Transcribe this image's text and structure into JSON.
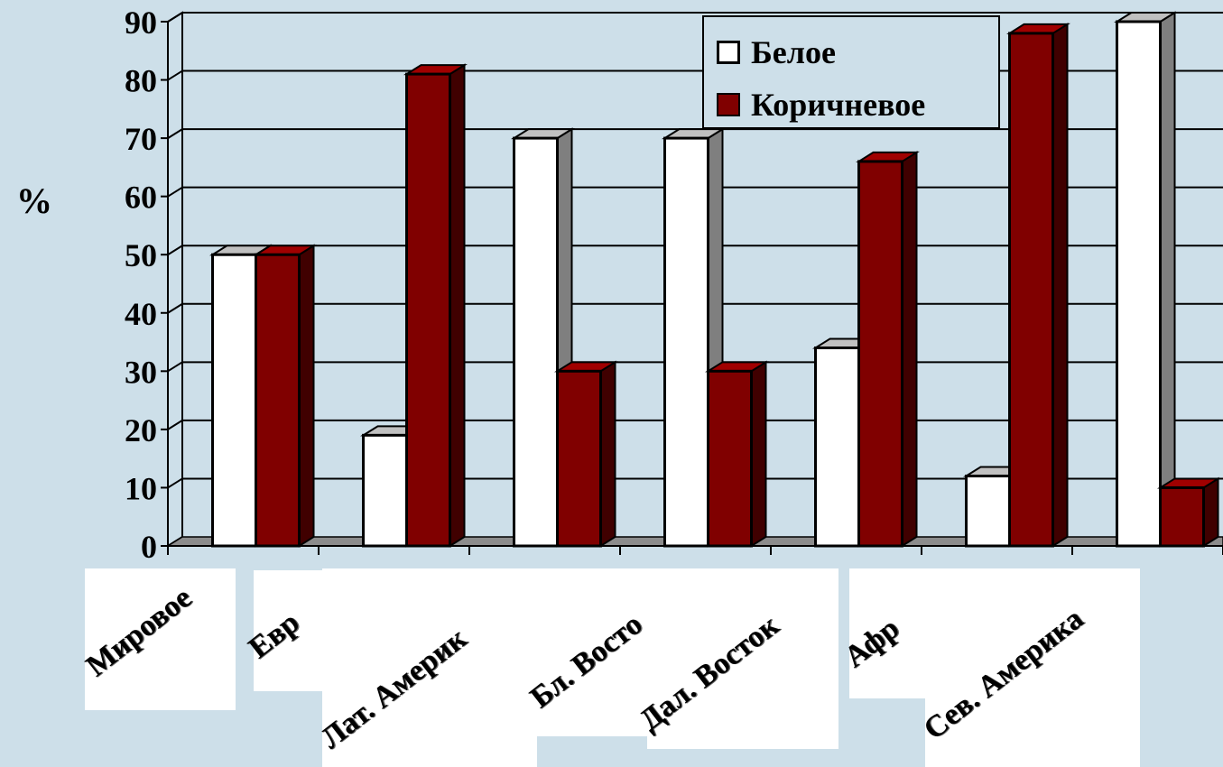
{
  "chart_data": {
    "type": "bar",
    "categories": [
      "Мировое",
      "Евр",
      "Лат. Америк",
      "Бл. Восто",
      "Дал. Восток",
      "Афр",
      "Сев. Америка"
    ],
    "series": [
      {
        "name": "Белое",
        "color": "#ffffff",
        "values": [
          50,
          19,
          70,
          70,
          34,
          12,
          90
        ]
      },
      {
        "name": "Коричневое",
        "color": "#800000",
        "values": [
          50,
          81,
          30,
          30,
          66,
          88,
          10
        ]
      }
    ],
    "ylabel": "%",
    "ylim": [
      0,
      90
    ],
    "yticks": [
      "0",
      "10",
      "20",
      "30",
      "40",
      "50",
      "60",
      "70",
      "80",
      "90"
    ],
    "grid": true,
    "legend_position": "top-right"
  }
}
